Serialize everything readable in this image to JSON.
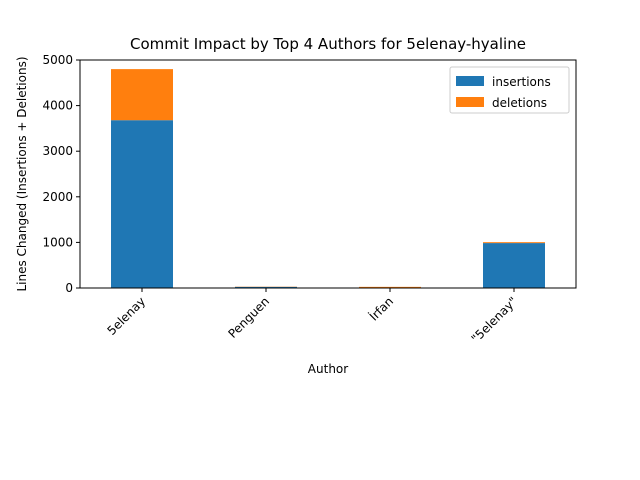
{
  "chart_data": {
    "type": "bar",
    "stacked": true,
    "title": "Commit Impact by Top 4 Authors for 5elenay-hyaline",
    "xlabel": "Author",
    "ylabel": "Lines Changed (Insertions + Deletions)",
    "categories": [
      "5elenay",
      "Penguen",
      "İrfan",
      "\"5elenay\""
    ],
    "series": [
      {
        "name": "insertions",
        "color": "#1f77b4",
        "values": [
          3680,
          25,
          5,
          985
        ]
      },
      {
        "name": "deletions",
        "color": "#ff7f0e",
        "values": [
          1120,
          5,
          20,
          20
        ]
      }
    ],
    "ylim": [
      0,
      5000
    ],
    "yticks": [
      0,
      1000,
      2000,
      3000,
      4000,
      5000
    ],
    "grid": false,
    "legend_position": "top-right"
  }
}
